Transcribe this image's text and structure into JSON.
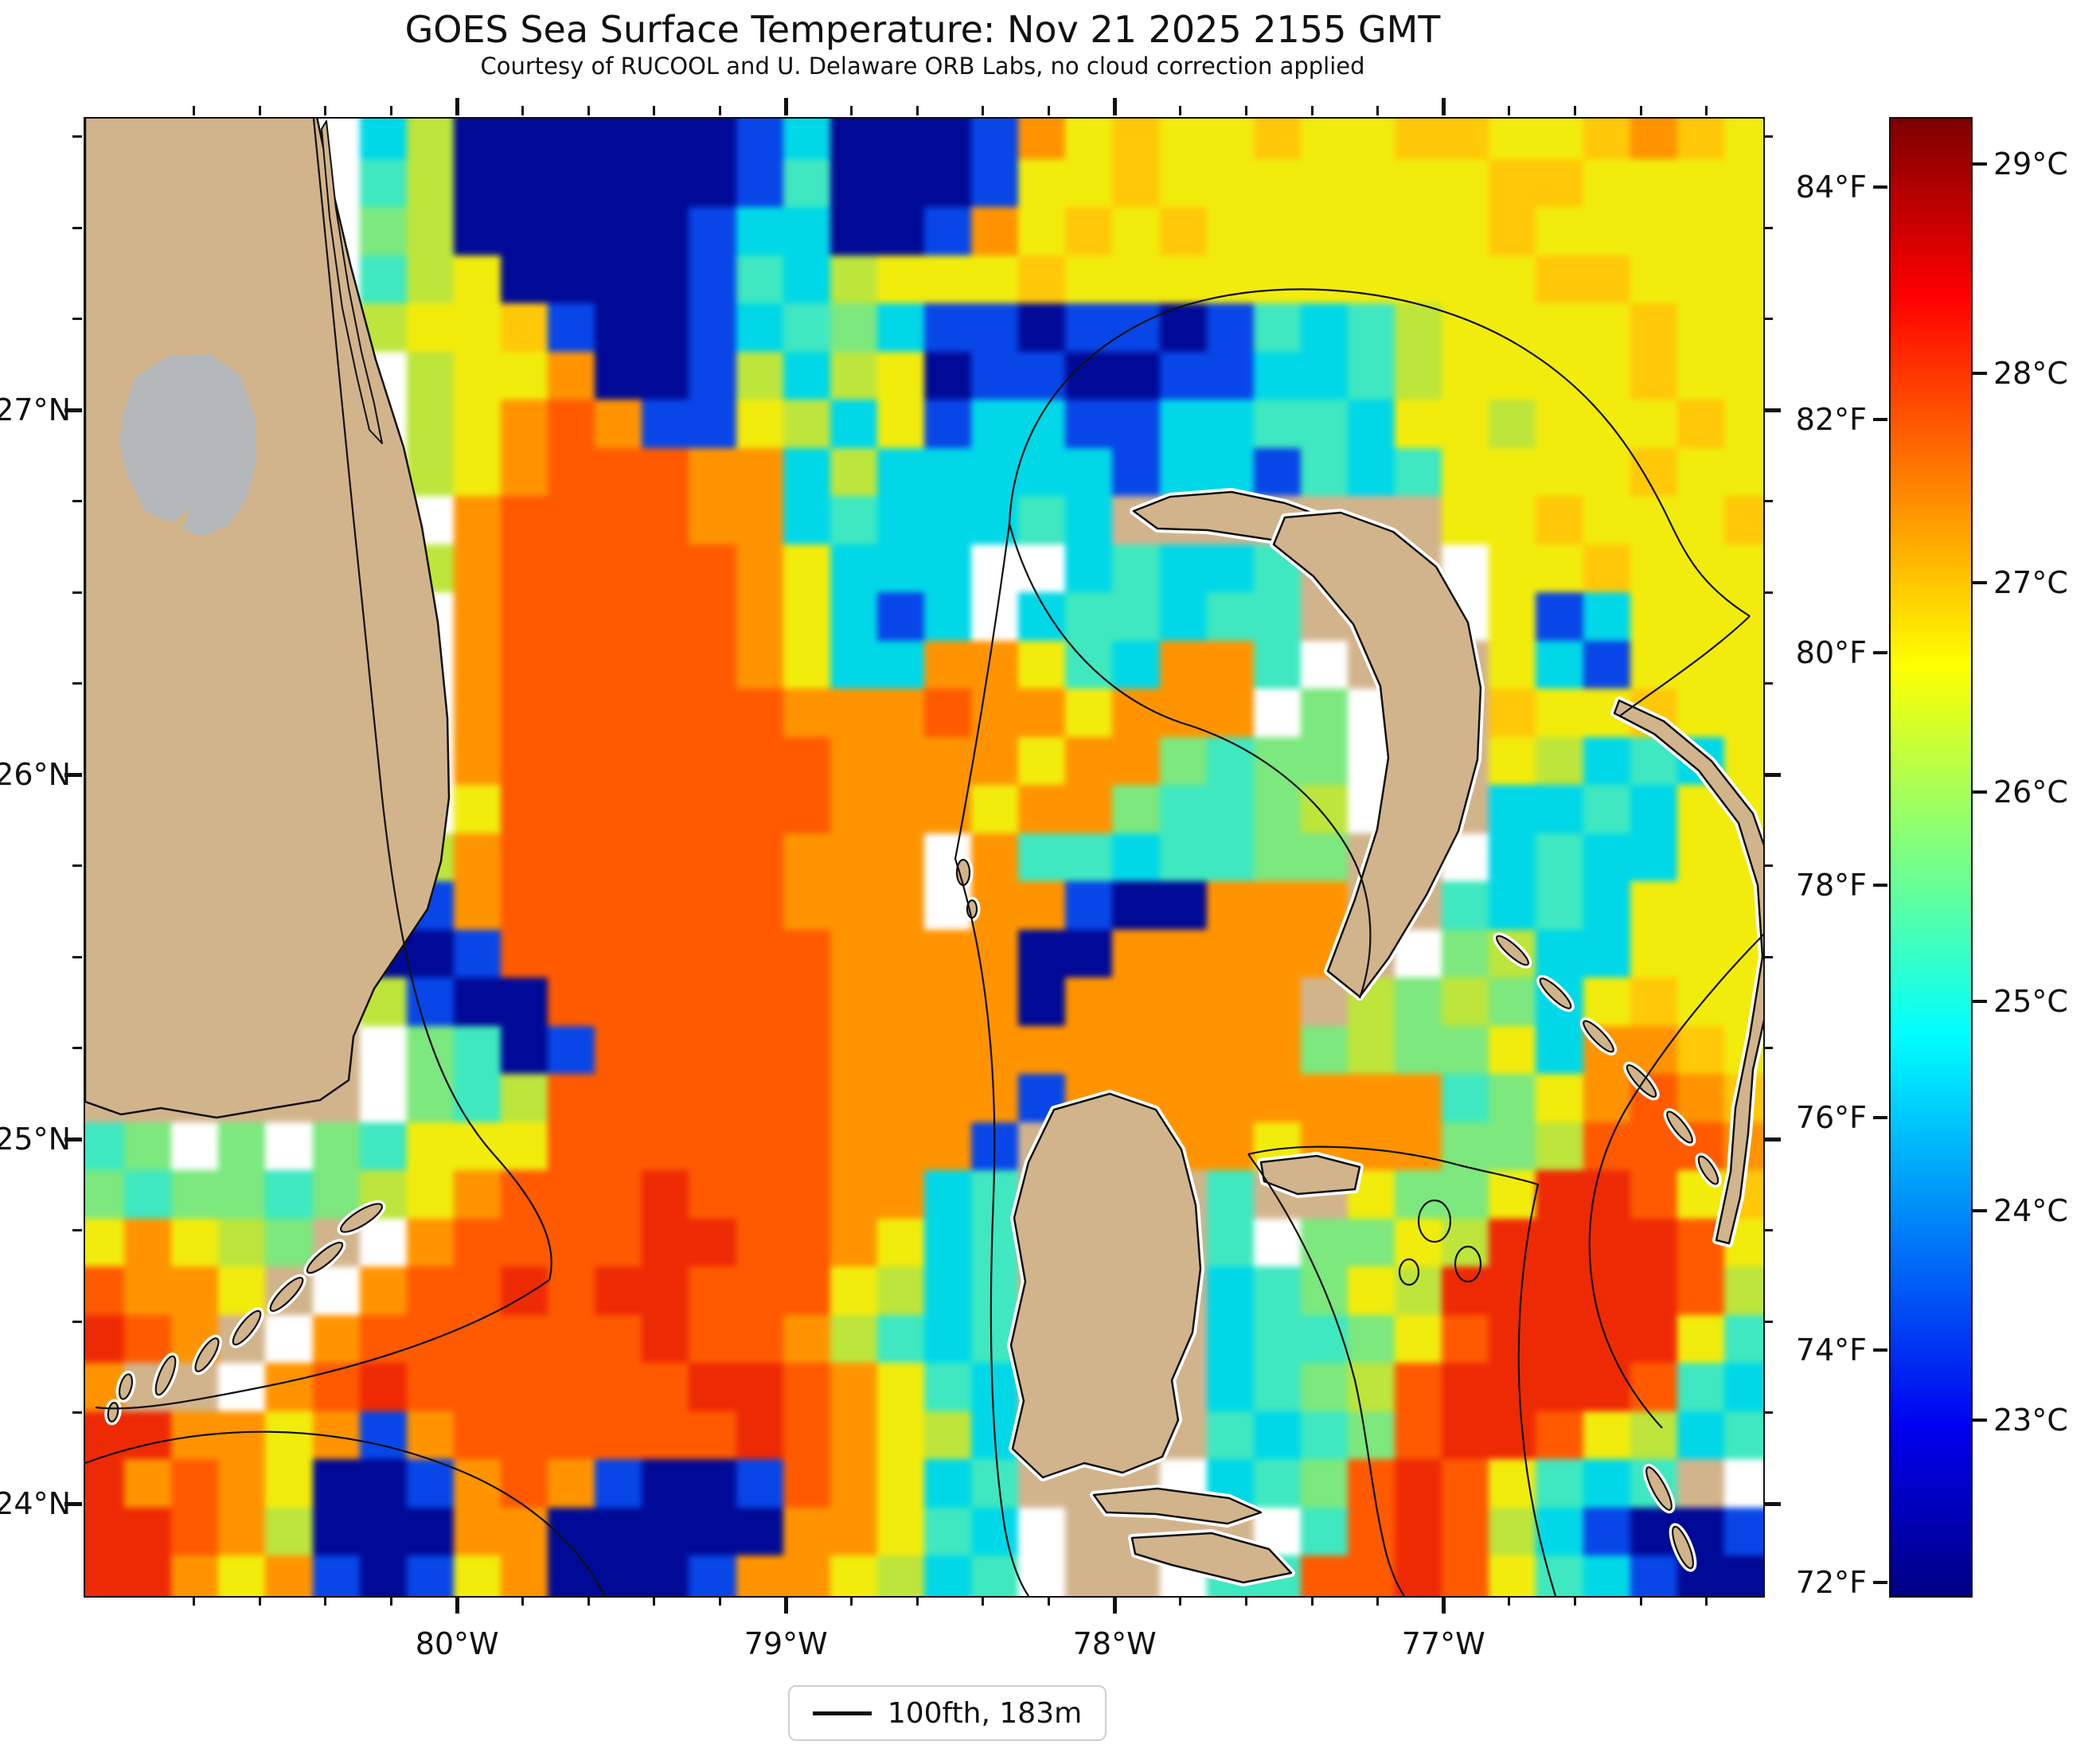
{
  "figure": {
    "title": "GOES Sea Surface Temperature: Nov 21 2025 2155 GMT",
    "subtitle": "Courtesy of RUCOOL and U. Delaware ORB Labs, no cloud correction applied"
  },
  "chart_data": {
    "type": "heatmap",
    "title": "GOES Sea Surface Temperature: Nov 21 2025 2155 GMT",
    "subtitle": "Courtesy of RUCOOL and U. Delaware ORB Labs, no cloud correction applied",
    "region": "Florida Straits and Bahamas",
    "x_axis": {
      "tick_values_deg_w": [
        80,
        79,
        78,
        77
      ],
      "tick_labels": [
        "80°W",
        "79°W",
        "78°W",
        "77°W"
      ],
      "lon_left_deg_w": 81.136,
      "lon_right_deg_w": 76.032,
      "minor_tick_step_deg": 0.2
    },
    "y_axis": {
      "tick_values_deg_n": [
        27,
        26,
        25,
        24
      ],
      "tick_labels": [
        "27°N",
        "26°N",
        "25°N",
        "24°N"
      ],
      "lat_top_deg_n": 27.8035,
      "lat_bottom_deg_n": 23.7519,
      "minor_tick_step_deg": 0.25
    },
    "colorbar": {
      "colormap": "jet",
      "min_c": 22.167,
      "max_c": 29.224,
      "ticks_f": [
        84,
        82,
        80,
        78,
        76,
        74,
        72
      ],
      "tick_labels_f": [
        "84°F",
        "82°F",
        "80°F",
        "78°F",
        "76°F",
        "74°F",
        "72°F"
      ],
      "ticks_c": [
        29,
        28,
        27,
        26,
        25,
        24,
        23
      ],
      "tick_labels_c": [
        "29°C",
        "28°C",
        "27°C",
        "26°C",
        "25°C",
        "24°C",
        "23°C"
      ]
    },
    "legend": {
      "label": "100fth, 183m",
      "symbol": "black-line"
    },
    "sst_grid": {
      "cols": 36,
      "rows": 31,
      "palette": {
        "L": {
          "color": "#D2B48C",
          "meaning": "land"
        },
        "G": {
          "color": "#B4B8BB",
          "meaning": "cloud/no-data over land"
        },
        "w": {
          "color": "#FFFFFF",
          "meaning": "missing data"
        },
        "n": {
          "color": "#000A96",
          "approx_c": 22.6
        },
        "b": {
          "color": "#0846E8",
          "approx_c": 23.8
        },
        "c": {
          "color": "#00D8E8",
          "approx_c": 25.0
        },
        "t": {
          "color": "#3FE8C0",
          "approx_c": 25.4
        },
        "g": {
          "color": "#7CE87E",
          "approx_c": 25.9
        },
        "l": {
          "color": "#BDE53C",
          "approx_c": 26.3
        },
        "y": {
          "color": "#F2EC0C",
          "approx_c": 26.7
        },
        "m": {
          "color": "#FFC808",
          "approx_c": 27.1
        },
        "o": {
          "color": "#FF9400",
          "approx_c": 27.6
        },
        "O": {
          "color": "#FF5A00",
          "approx_c": 28.1
        },
        "r": {
          "color": "#EE2A04",
          "approx_c": 28.5
        }
      },
      "cells": [
        "LLLLLwclnnnnnnbcnnnboymyymyymmyymomy",
        "LLLLLwtlnnnnnnbtnnnbyymyyyyyyymmyyyy",
        "LLLLLwglnnnnnbccnnboymymyyyyyymyyyyy",
        "LLLLLwtlynnnnbtclyyymyyyyyyyyyymmyyy",
        "LLLLLwlyymbnnbctgcbbnbbnbtctlyyyymyy",
        "LGGGLLwlyyonnblclynbbnnbbcctlyyyymyy",
        "LGGGLLwlyoOobbylcybccbbccttcyylyyymy",
        "LGGGLLwlyoOOOooclcccccbccbtctyyyymyy",
        "LGGGLLLwoOOOOooctccctcLLLLLLLyymyyym",
        "LLLLLLLloOOOOOoycccwwctcctLLLwyymyyy",
        "LLLLLLLwoOOOOOoycbcwcttcttLLLwybcyyy",
        "LLLLLLLwoOOOOOoyccooytcootwLLLycbyyy",
        "LLLLLLLwoOOOOOOoooOooyooowgwLLmyymyy",
        "LLLLLLLwoOOOOOOOooooyoogtggwLLylctcy",
        "LLLLLLLwyOOOOOOOoooyoogttglwLLcctcyy",
        "LLLLLLwloOOOOOOooowottcttggLLwctccyy",
        "LLLLLwnboOOOOOOooowoobnnoooLLtctcyyy",
        "LLLLLwnnbOOOOOOOoooonnoooooLwglccyyy",
        "LLLLLwlbnnOOOOOOoooonoooooLlglgcymyy",
        "LLLLLLwgtnbOOOOOooooooooooglggycoomy",
        "LLLLLLwgtlOOOOOOoooobooooooootgyoOom",
        "tgwgwgtyyyOOOOOOooobLLLooyooogglOOOo",
        "gtggtglyoOOOrOOOooctLLLLtLLyggyrrOym",
        "yoylgLwoOOOOrrOOoyctLLLLtwggylrrrrOy",
        "OooyLwoOOrOrrOOOylctLLLLctgylrrrrrOl",
        "rOoLwoOOOOOOrOOoltctLLLLcttgyOrrrryt",
        "oLLwoOrOOOOOOrrOoytcLLLLctglOrrrrOtc",
        "rrooyoboOOOOOOrOoylcLLLLtctgOrrOylct",
        "roOoynnboOobnnbOoyctLLLwctgOrOytctLw",
        "rrOolnnnoonnnnnooytcwLLLLwtOrOlcbnnb",
        "rroyobnbyonnnbooylctwLLwttOOrOytcbnn"
      ]
    },
    "geography": {
      "land_color": "#D2B48C",
      "cloud_color": "#B4B8BB",
      "florida": [
        [
          105,
          140
        ],
        [
          395,
          140
        ],
        [
          412,
          220
        ],
        [
          438,
          330
        ],
        [
          470,
          450
        ],
        [
          505,
          560
        ],
        [
          528,
          660
        ],
        [
          548,
          780
        ],
        [
          560,
          900
        ],
        [
          562,
          1000
        ],
        [
          552,
          1080
        ],
        [
          535,
          1140
        ],
        [
          505,
          1185
        ],
        [
          468,
          1240
        ],
        [
          442,
          1300
        ],
        [
          436,
          1355
        ],
        [
          400,
          1380
        ],
        [
          340,
          1390
        ],
        [
          270,
          1402
        ],
        [
          200,
          1390
        ],
        [
          150,
          1398
        ],
        [
          105,
          1382
        ]
      ],
      "barrier_island": [
        [
          408,
          150
        ],
        [
          420,
          260
        ],
        [
          436,
          360
        ],
        [
          452,
          440
        ],
        [
          468,
          505
        ],
        [
          478,
          555
        ],
        [
          462,
          538
        ],
        [
          446,
          470
        ],
        [
          428,
          385
        ],
        [
          412,
          270
        ],
        [
          402,
          160
        ]
      ],
      "cloud_blob": [
        [
          152,
          520
        ],
        [
          168,
          472
        ],
        [
          210,
          445
        ],
        [
          262,
          443
        ],
        [
          300,
          470
        ],
        [
          318,
          520
        ],
        [
          320,
          575
        ],
        [
          308,
          625
        ],
        [
          285,
          658
        ],
        [
          252,
          672
        ],
        [
          228,
          662
        ],
        [
          238,
          635
        ],
        [
          215,
          655
        ],
        [
          180,
          640
        ],
        [
          158,
          595
        ],
        [
          148,
          555
        ]
      ],
      "islands": {
        "grand_bahama": [
          [
            1422,
            640
          ],
          [
            1468,
            622
          ],
          [
            1545,
            616
          ],
          [
            1612,
            630
          ],
          [
            1668,
            650
          ],
          [
            1694,
            668
          ],
          [
            1662,
            688
          ],
          [
            1595,
            676
          ],
          [
            1515,
            664
          ],
          [
            1452,
            662
          ]
        ],
        "abaco": [
          [
            1612,
            648
          ],
          [
            1682,
            642
          ],
          [
            1748,
            666
          ],
          [
            1802,
            710
          ],
          [
            1842,
            780
          ],
          [
            1858,
            862
          ],
          [
            1854,
            952
          ],
          [
            1830,
            1042
          ],
          [
            1790,
            1122
          ],
          [
            1742,
            1202
          ],
          [
            1706,
            1250
          ],
          [
            1666,
            1218
          ],
          [
            1700,
            1128
          ],
          [
            1728,
            1040
          ],
          [
            1742,
            950
          ],
          [
            1732,
            860
          ],
          [
            1698,
            782
          ],
          [
            1648,
            722
          ],
          [
            1598,
            682
          ]
        ],
        "andros": [
          [
            1322,
            1392
          ],
          [
            1392,
            1372
          ],
          [
            1450,
            1392
          ],
          [
            1482,
            1442
          ],
          [
            1500,
            1512
          ],
          [
            1506,
            1592
          ],
          [
            1496,
            1672
          ],
          [
            1470,
            1732
          ],
          [
            1478,
            1782
          ],
          [
            1458,
            1828
          ],
          [
            1408,
            1848
          ],
          [
            1360,
            1836
          ],
          [
            1308,
            1854
          ],
          [
            1270,
            1818
          ],
          [
            1284,
            1758
          ],
          [
            1268,
            1688
          ],
          [
            1286,
            1608
          ],
          [
            1272,
            1528
          ],
          [
            1290,
            1458
          ]
        ],
        "andros_south_1": [
          [
            1372,
            1876
          ],
          [
            1452,
            1868
          ],
          [
            1542,
            1880
          ],
          [
            1582,
            1898
          ],
          [
            1540,
            1912
          ],
          [
            1450,
            1900
          ],
          [
            1388,
            1898
          ]
        ],
        "andros_south_2": [
          [
            1420,
            1930
          ],
          [
            1520,
            1924
          ],
          [
            1592,
            1944
          ],
          [
            1620,
            1974
          ],
          [
            1560,
            1986
          ],
          [
            1470,
            1964
          ],
          [
            1424,
            1950
          ]
        ],
        "new_providence": [
          [
            1582,
            1458
          ],
          [
            1652,
            1450
          ],
          [
            1706,
            1464
          ],
          [
            1700,
            1492
          ],
          [
            1628,
            1498
          ],
          [
            1586,
            1482
          ]
        ],
        "eleuthera": [
          [
            2032,
            878
          ],
          [
            2088,
            904
          ],
          [
            2148,
            954
          ],
          [
            2200,
            1020
          ],
          [
            2228,
            1100
          ],
          [
            2232,
            1180
          ],
          [
            2218,
            1262
          ],
          [
            2200,
            1342
          ],
          [
            2194,
            1422
          ],
          [
            2184,
            1502
          ],
          [
            2170,
            1560
          ],
          [
            2154,
            1556
          ],
          [
            2172,
            1470
          ],
          [
            2178,
            1390
          ],
          [
            2196,
            1300
          ],
          [
            2212,
            1200
          ],
          [
            2206,
            1110
          ],
          [
            2182,
            1032
          ],
          [
            2132,
            966
          ],
          [
            2076,
            920
          ],
          [
            2026,
            894
          ]
        ]
      },
      "island_ellipses": [
        [
          452,
          1528,
          30,
          9,
          -32
        ],
        [
          406,
          1578,
          28,
          8,
          -40
        ],
        [
          358,
          1624,
          28,
          8,
          -46
        ],
        [
          308,
          1666,
          26,
          8,
          -52
        ],
        [
          258,
          1700,
          24,
          8,
          -58
        ],
        [
          206,
          1726,
          26,
          8,
          -68
        ],
        [
          156,
          1740,
          16,
          7,
          -75
        ],
        [
          140,
          1772,
          12,
          6,
          -80
        ],
        [
          1898,
          1192,
          26,
          7,
          42
        ],
        [
          1952,
          1246,
          26,
          7,
          44
        ],
        [
          2006,
          1300,
          26,
          7,
          46
        ],
        [
          2060,
          1356,
          26,
          7,
          48
        ],
        [
          2108,
          1414,
          24,
          7,
          52
        ],
        [
          2144,
          1468,
          20,
          7,
          58
        ],
        [
          2082,
          1868,
          30,
          8,
          62
        ],
        [
          2112,
          1942,
          28,
          8,
          68
        ],
        [
          1208,
          1094,
          8,
          16,
          0
        ],
        [
          1219,
          1140,
          6,
          11,
          0
        ]
      ],
      "isobath_contours": [
        "M 392,147 C 420,420 448,720 478,1000 C 502,1215 538,1358 618,1448 C 672,1508 700,1560 688,1606",
        "M 688,1606 C 600,1668 468,1712 330,1740 C 240,1758 166,1772 118,1766",
        "M 105,1836 C 255,1780 425,1786 562,1840 C 652,1874 722,1932 758,2003",
        "M 1266,656 C 1272,520 1362,420 1492,380 C 1625,342 1802,362 1922,442 C 2002,494 2050,562 2090,642 C 2114,692 2132,732 2196,772",
        "M 1266,656 C 1300,782 1382,872 1482,906 C 1562,930 1642,982 1690,1062 C 1720,1112 1730,1182 1706,1252",
        "M 2196,772 C 2148,818 2086,858 2032,898",
        "M 1266,656 C 1248,790 1226,930 1198,1077 C 1238,1200 1252,1352 1246,1502 C 1240,1652 1242,1802 1260,1916 C 1268,1962 1280,1988 1290,2003",
        "M 1566,1448 C 1620,1522 1672,1622 1700,1732 C 1716,1802 1722,1882 1740,1952 C 1748,1980 1756,1994 1762,2003",
        "M 1566,1448 C 1642,1430 1752,1440 1832,1462 C 1872,1472 1906,1478 1930,1486 C 1908,1580 1900,1690 1910,1792 C 1916,1862 1930,1932 1952,2003",
        "M 2258,1128 C 2180,1202 2100,1292 2040,1392 C 2000,1462 1986,1542 2000,1622 C 2010,1682 2040,1742 2086,1792"
      ],
      "contour_ovals": [
        [
          1800,
          1532,
          20,
          26
        ],
        [
          1842,
          1586,
          16,
          22
        ],
        [
          1768,
          1596,
          12,
          16
        ]
      ]
    }
  }
}
